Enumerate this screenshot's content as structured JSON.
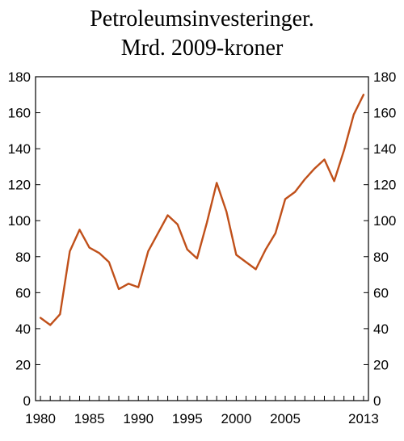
{
  "title": {
    "line1": "Petroleumsinvesteringer.",
    "line2": "Mrd. 2009-kroner"
  },
  "chart_data": {
    "type": "line",
    "title": "Petroleumsinvesteringer. Mrd. 2009-kroner",
    "xlabel": "",
    "ylabel": "",
    "xlim": [
      1979.5,
      2013.5
    ],
    "ylim": [
      0,
      180
    ],
    "x_ticks": [
      1980,
      1985,
      1990,
      1995,
      2000,
      2005,
      2013
    ],
    "y_ticks": [
      0,
      20,
      40,
      60,
      80,
      100,
      120,
      140,
      160,
      180
    ],
    "grid": false,
    "legend": "none",
    "series": [
      {
        "color": "#c0501a",
        "x": [
          1980,
          1981,
          1982,
          1983,
          1984,
          1985,
          1986,
          1987,
          1988,
          1989,
          1990,
          1991,
          1992,
          1993,
          1994,
          1995,
          1996,
          1997,
          1998,
          1999,
          2000,
          2001,
          2002,
          2003,
          2004,
          2005,
          2006,
          2007,
          2008,
          2009,
          2010,
          2011,
          2012,
          2013
        ],
        "values": [
          46,
          42,
          48,
          83,
          95,
          85,
          82,
          77,
          62,
          65,
          63,
          83,
          93,
          103,
          98,
          84,
          79,
          99,
          121,
          105,
          81,
          77,
          73,
          84,
          93,
          112,
          116,
          123,
          129,
          134,
          122,
          139,
          159,
          170
        ]
      }
    ]
  }
}
